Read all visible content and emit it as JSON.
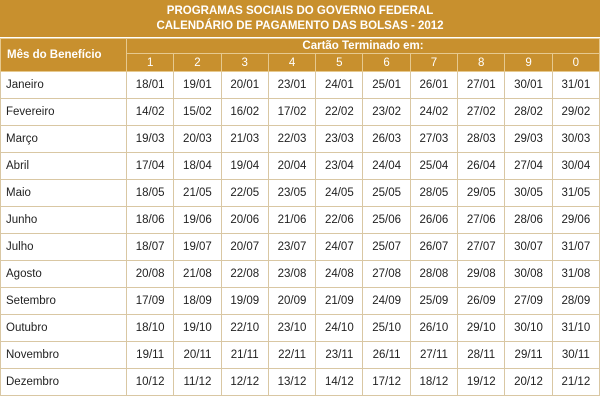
{
  "title": {
    "line1": "PROGRAMAS SOCIAIS DO GOVERNO FEDERAL",
    "line2": "CALENDÁRIO DE PAGAMENTO DAS BOLSAS - 2012"
  },
  "table": {
    "month_header": "Mês do Benefício",
    "card_header": "Cartão Terminado em:",
    "digits": [
      "1",
      "2",
      "3",
      "4",
      "5",
      "6",
      "7",
      "8",
      "9",
      "0"
    ],
    "rows": [
      {
        "month": "Janeiro",
        "values": [
          "18/01",
          "19/01",
          "20/01",
          "23/01",
          "24/01",
          "25/01",
          "26/01",
          "27/01",
          "30/01",
          "31/01"
        ]
      },
      {
        "month": "Fevereiro",
        "values": [
          "14/02",
          "15/02",
          "16/02",
          "17/02",
          "22/02",
          "23/02",
          "24/02",
          "27/02",
          "28/02",
          "29/02"
        ]
      },
      {
        "month": "Março",
        "values": [
          "19/03",
          "20/03",
          "21/03",
          "22/03",
          "23/03",
          "26/03",
          "27/03",
          "28/03",
          "29/03",
          "30/03"
        ]
      },
      {
        "month": "Abril",
        "values": [
          "17/04",
          "18/04",
          "19/04",
          "20/04",
          "23/04",
          "24/04",
          "25/04",
          "26/04",
          "27/04",
          "30/04"
        ]
      },
      {
        "month": "Maio",
        "values": [
          "18/05",
          "21/05",
          "22/05",
          "23/05",
          "24/05",
          "25/05",
          "28/05",
          "29/05",
          "30/05",
          "31/05"
        ]
      },
      {
        "month": "Junho",
        "values": [
          "18/06",
          "19/06",
          "20/06",
          "21/06",
          "22/06",
          "25/06",
          "26/06",
          "27/06",
          "28/06",
          "29/06"
        ]
      },
      {
        "month": "Julho",
        "values": [
          "18/07",
          "19/07",
          "20/07",
          "23/07",
          "24/07",
          "25/07",
          "26/07",
          "27/07",
          "30/07",
          "31/07"
        ]
      },
      {
        "month": "Agosto",
        "values": [
          "20/08",
          "21/08",
          "22/08",
          "23/08",
          "24/08",
          "27/08",
          "28/08",
          "29/08",
          "30/08",
          "31/08"
        ]
      },
      {
        "month": "Setembro",
        "values": [
          "17/09",
          "18/09",
          "19/09",
          "20/09",
          "21/09",
          "24/09",
          "25/09",
          "26/09",
          "27/09",
          "28/09"
        ]
      },
      {
        "month": "Outubro",
        "values": [
          "18/10",
          "19/10",
          "22/10",
          "23/10",
          "24/10",
          "25/10",
          "26/10",
          "29/10",
          "30/10",
          "31/10"
        ]
      },
      {
        "month": "Novembro",
        "values": [
          "19/11",
          "20/11",
          "21/11",
          "22/11",
          "23/11",
          "26/11",
          "27/11",
          "28/11",
          "29/11",
          "30/11"
        ]
      },
      {
        "month": "Dezembro",
        "values": [
          "10/12",
          "11/12",
          "12/12",
          "13/12",
          "14/12",
          "17/12",
          "18/12",
          "19/12",
          "20/12",
          "21/12"
        ]
      }
    ]
  },
  "colors": {
    "header_bg": "#c8902e",
    "header_text": "#ffffff",
    "grid": "#d9c7a3"
  }
}
